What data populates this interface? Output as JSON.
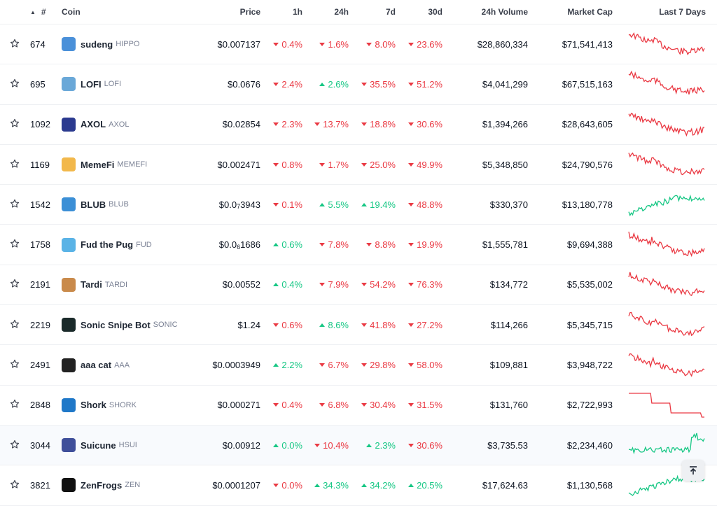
{
  "header": {
    "rank": "#",
    "coin": "Coin",
    "price": "Price",
    "h1": "1h",
    "h24": "24h",
    "d7": "7d",
    "d30": "30d",
    "volume": "24h Volume",
    "mcap": "Market Cap",
    "spark": "Last 7 Days"
  },
  "colors": {
    "up": "#16c784",
    "down": "#ea3943"
  },
  "rows": [
    {
      "rank": "674",
      "name": "sudeng",
      "symbol": "HIPPO",
      "price": "$0.007137",
      "price_sub": null,
      "h1": "0.4%",
      "h1_dir": "down",
      "h24": "1.6%",
      "h24_dir": "down",
      "d7": "8.0%",
      "d7_dir": "down",
      "d30": "23.6%",
      "d30_dir": "down",
      "volume": "$28,860,334",
      "mcap": "$71,541,413",
      "logo_color": "#4a90d9",
      "trend": "down"
    },
    {
      "rank": "695",
      "name": "LOFI",
      "symbol": "LOFI",
      "price": "$0.0676",
      "price_sub": null,
      "h1": "2.4%",
      "h1_dir": "down",
      "h24": "2.6%",
      "h24_dir": "up",
      "d7": "35.5%",
      "d7_dir": "down",
      "d30": "51.2%",
      "d30_dir": "down",
      "volume": "$4,041,299",
      "mcap": "$67,515,163",
      "logo_color": "#6aa8d8",
      "trend": "down"
    },
    {
      "rank": "1092",
      "name": "AXOL",
      "symbol": "AXOL",
      "price": "$0.02854",
      "price_sub": null,
      "h1": "2.3%",
      "h1_dir": "down",
      "h24": "13.7%",
      "h24_dir": "down",
      "d7": "18.8%",
      "d7_dir": "down",
      "d30": "30.6%",
      "d30_dir": "down",
      "volume": "$1,394,266",
      "mcap": "$28,643,605",
      "logo_color": "#2b3a8f",
      "trend": "down"
    },
    {
      "rank": "1169",
      "name": "MemeFi",
      "symbol": "MEMEFI",
      "price": "$0.002471",
      "price_sub": null,
      "h1": "0.8%",
      "h1_dir": "down",
      "h24": "1.7%",
      "h24_dir": "down",
      "d7": "25.0%",
      "d7_dir": "down",
      "d30": "49.9%",
      "d30_dir": "down",
      "volume": "$5,348,850",
      "mcap": "$24,790,576",
      "logo_color": "#f2b84b",
      "trend": "down"
    },
    {
      "rank": "1542",
      "name": "BLUB",
      "symbol": "BLUB",
      "price": "$0.0",
      "price_sub": "7",
      "price_tail": "3943",
      "h1": "0.1%",
      "h1_dir": "down",
      "h24": "5.5%",
      "h24_dir": "up",
      "d7": "19.4%",
      "d7_dir": "up",
      "d30": "48.8%",
      "d30_dir": "down",
      "volume": "$330,370",
      "mcap": "$13,180,778",
      "logo_color": "#3b8fd6",
      "trend": "up"
    },
    {
      "rank": "1758",
      "name": "Fud the Pug",
      "symbol": "FUD",
      "price": "$0.0",
      "price_sub": "6",
      "price_tail": "1686",
      "h1": "0.6%",
      "h1_dir": "up",
      "h24": "7.8%",
      "h24_dir": "down",
      "d7": "8.8%",
      "d7_dir": "down",
      "d30": "19.9%",
      "d30_dir": "down",
      "volume": "$1,555,781",
      "mcap": "$9,694,388",
      "logo_color": "#5ab3e6",
      "trend": "down"
    },
    {
      "rank": "2191",
      "name": "Tardi",
      "symbol": "TARDI",
      "price": "$0.00552",
      "price_sub": null,
      "h1": "0.4%",
      "h1_dir": "up",
      "h24": "7.9%",
      "h24_dir": "down",
      "d7": "54.2%",
      "d7_dir": "down",
      "d30": "76.3%",
      "d30_dir": "down",
      "volume": "$134,772",
      "mcap": "$5,535,002",
      "logo_color": "#c98a4b",
      "trend": "down"
    },
    {
      "rank": "2219",
      "name": "Sonic Snipe Bot",
      "symbol": "SONIC",
      "price": "$1.24",
      "price_sub": null,
      "h1": "0.6%",
      "h1_dir": "down",
      "h24": "8.6%",
      "h24_dir": "up",
      "d7": "41.8%",
      "d7_dir": "down",
      "d30": "27.2%",
      "d30_dir": "down",
      "volume": "$114,266",
      "mcap": "$5,345,715",
      "logo_color": "#1a2a2a",
      "trend": "down"
    },
    {
      "rank": "2491",
      "name": "aaa cat",
      "symbol": "AAA",
      "price": "$0.0003949",
      "price_sub": null,
      "h1": "2.2%",
      "h1_dir": "up",
      "h24": "6.7%",
      "h24_dir": "down",
      "d7": "29.8%",
      "d7_dir": "down",
      "d30": "58.0%",
      "d30_dir": "down",
      "volume": "$109,881",
      "mcap": "$3,948,722",
      "logo_color": "#222222",
      "trend": "down"
    },
    {
      "rank": "2848",
      "name": "Shork",
      "symbol": "SHORK",
      "price": "$0.000271",
      "price_sub": null,
      "h1": "0.4%",
      "h1_dir": "down",
      "h24": "6.8%",
      "h24_dir": "down",
      "d7": "30.4%",
      "d7_dir": "down",
      "d30": "31.5%",
      "d30_dir": "down",
      "volume": "$131,760",
      "mcap": "$2,722,993",
      "logo_color": "#1f78c8",
      "trend": "step"
    },
    {
      "rank": "3044",
      "name": "Suicune",
      "symbol": "HSUI",
      "price": "$0.00912",
      "price_sub": null,
      "h1": "0.0%",
      "h1_dir": "up",
      "h24": "10.4%",
      "h24_dir": "down",
      "d7": "2.3%",
      "d7_dir": "up",
      "d30": "30.6%",
      "d30_dir": "down",
      "volume": "$3,735.53",
      "mcap": "$2,234,460",
      "logo_color": "#3f4f9a",
      "trend": "spike"
    },
    {
      "rank": "3821",
      "name": "ZenFrogs",
      "symbol": "ZEN",
      "price": "$0.0001207",
      "price_sub": null,
      "h1": "0.0%",
      "h1_dir": "down",
      "h24": "34.3%",
      "h24_dir": "up",
      "d7": "34.2%",
      "d7_dir": "up",
      "d30": "20.5%",
      "d30_dir": "up",
      "volume": "$17,624.63",
      "mcap": "$1,130,568",
      "logo_color": "#111111",
      "trend": "up"
    }
  ]
}
